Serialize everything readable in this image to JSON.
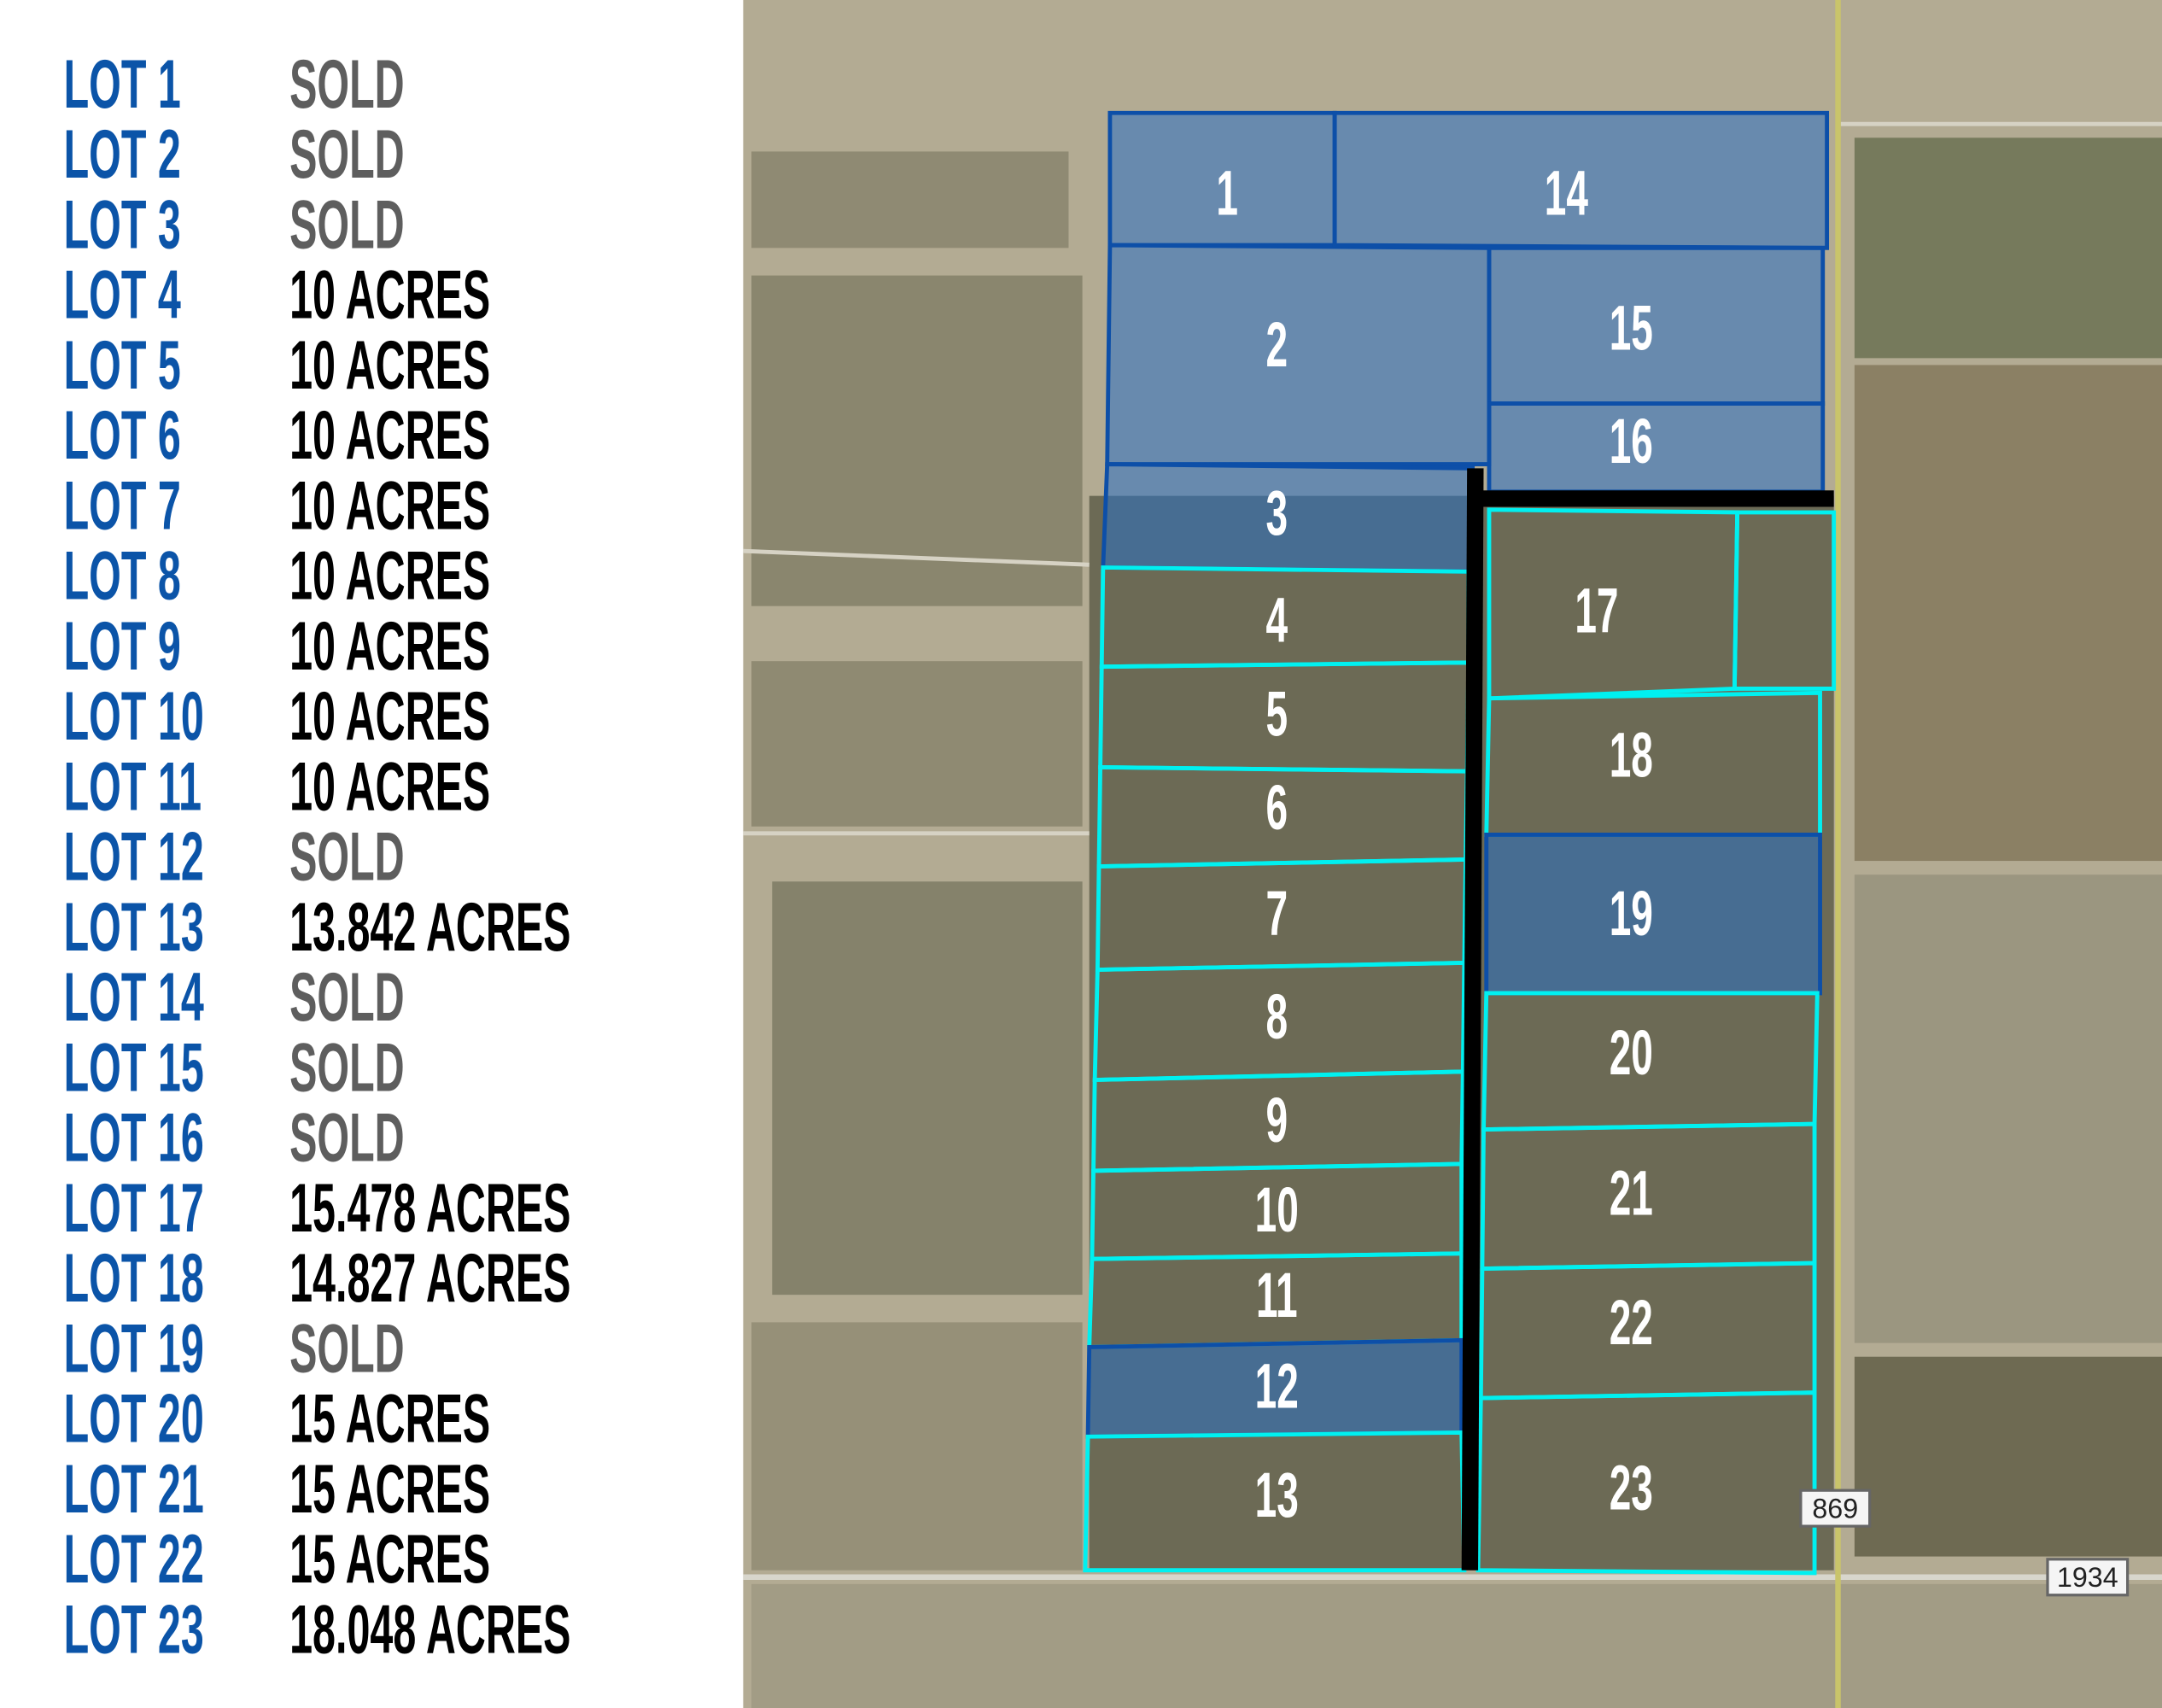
{
  "legend": [
    {
      "lot": "LOT 1",
      "value": "SOLD"
    },
    {
      "lot": "LOT 2",
      "value": "SOLD"
    },
    {
      "lot": "LOT 3",
      "value": "SOLD"
    },
    {
      "lot": "LOT 4",
      "value": "10 ACRES"
    },
    {
      "lot": "LOT 5",
      "value": "10 ACRES"
    },
    {
      "lot": "LOT 6",
      "value": "10 ACRES"
    },
    {
      "lot": "LOT 7",
      "value": "10 ACRES"
    },
    {
      "lot": "LOT 8",
      "value": "10 ACRES"
    },
    {
      "lot": "LOT 9",
      "value": "10 ACRES"
    },
    {
      "lot": "LOT 10",
      "value": "10 ACRES"
    },
    {
      "lot": "LOT 11",
      "value": "10 ACRES"
    },
    {
      "lot": "LOT 12",
      "value": "SOLD"
    },
    {
      "lot": "LOT 13",
      "value": "13.842 ACRES"
    },
    {
      "lot": "LOT 14",
      "value": "SOLD"
    },
    {
      "lot": "LOT 15",
      "value": "SOLD"
    },
    {
      "lot": "LOT 16",
      "value": "SOLD"
    },
    {
      "lot": "LOT 17",
      "value": "15.478 ACRES"
    },
    {
      "lot": "LOT 18",
      "value": "14.827 ACRES"
    },
    {
      "lot": "LOT 19",
      "value": "SOLD"
    },
    {
      "lot": "LOT 20",
      "value": "15 ACRES"
    },
    {
      "lot": "LOT 21",
      "value": "15 ACRES"
    },
    {
      "lot": "LOT 22",
      "value": "15 ACRES"
    },
    {
      "lot": "LOT 23",
      "value": "18.048 ACRES"
    }
  ],
  "map": {
    "lots": [
      {
        "number": "1",
        "status": "sold"
      },
      {
        "number": "2",
        "status": "sold"
      },
      {
        "number": "3",
        "status": "sold"
      },
      {
        "number": "4",
        "status": "available"
      },
      {
        "number": "5",
        "status": "available"
      },
      {
        "number": "6",
        "status": "available"
      },
      {
        "number": "7",
        "status": "available"
      },
      {
        "number": "8",
        "status": "available"
      },
      {
        "number": "9",
        "status": "available"
      },
      {
        "number": "10",
        "status": "available"
      },
      {
        "number": "11",
        "status": "available"
      },
      {
        "number": "12",
        "status": "sold"
      },
      {
        "number": "13",
        "status": "available"
      },
      {
        "number": "14",
        "status": "sold"
      },
      {
        "number": "15",
        "status": "sold"
      },
      {
        "number": "16",
        "status": "sold"
      },
      {
        "number": "17",
        "status": "available"
      },
      {
        "number": "18",
        "status": "available"
      },
      {
        "number": "19",
        "status": "sold"
      },
      {
        "number": "20",
        "status": "available"
      },
      {
        "number": "21",
        "status": "available"
      },
      {
        "number": "22",
        "status": "available"
      },
      {
        "number": "23",
        "status": "available"
      }
    ],
    "road_labels": [
      "869",
      "1934"
    ],
    "colors": {
      "sold_fill": "#2a6fc4",
      "sold_stroke": "#0d4fa8",
      "available_stroke": "#00f0f0",
      "access_road": "#000000",
      "lot_label_color": "#ffffff",
      "lot_name_color": "#0b54a8",
      "sold_text_color": "#5e5e5e"
    }
  }
}
